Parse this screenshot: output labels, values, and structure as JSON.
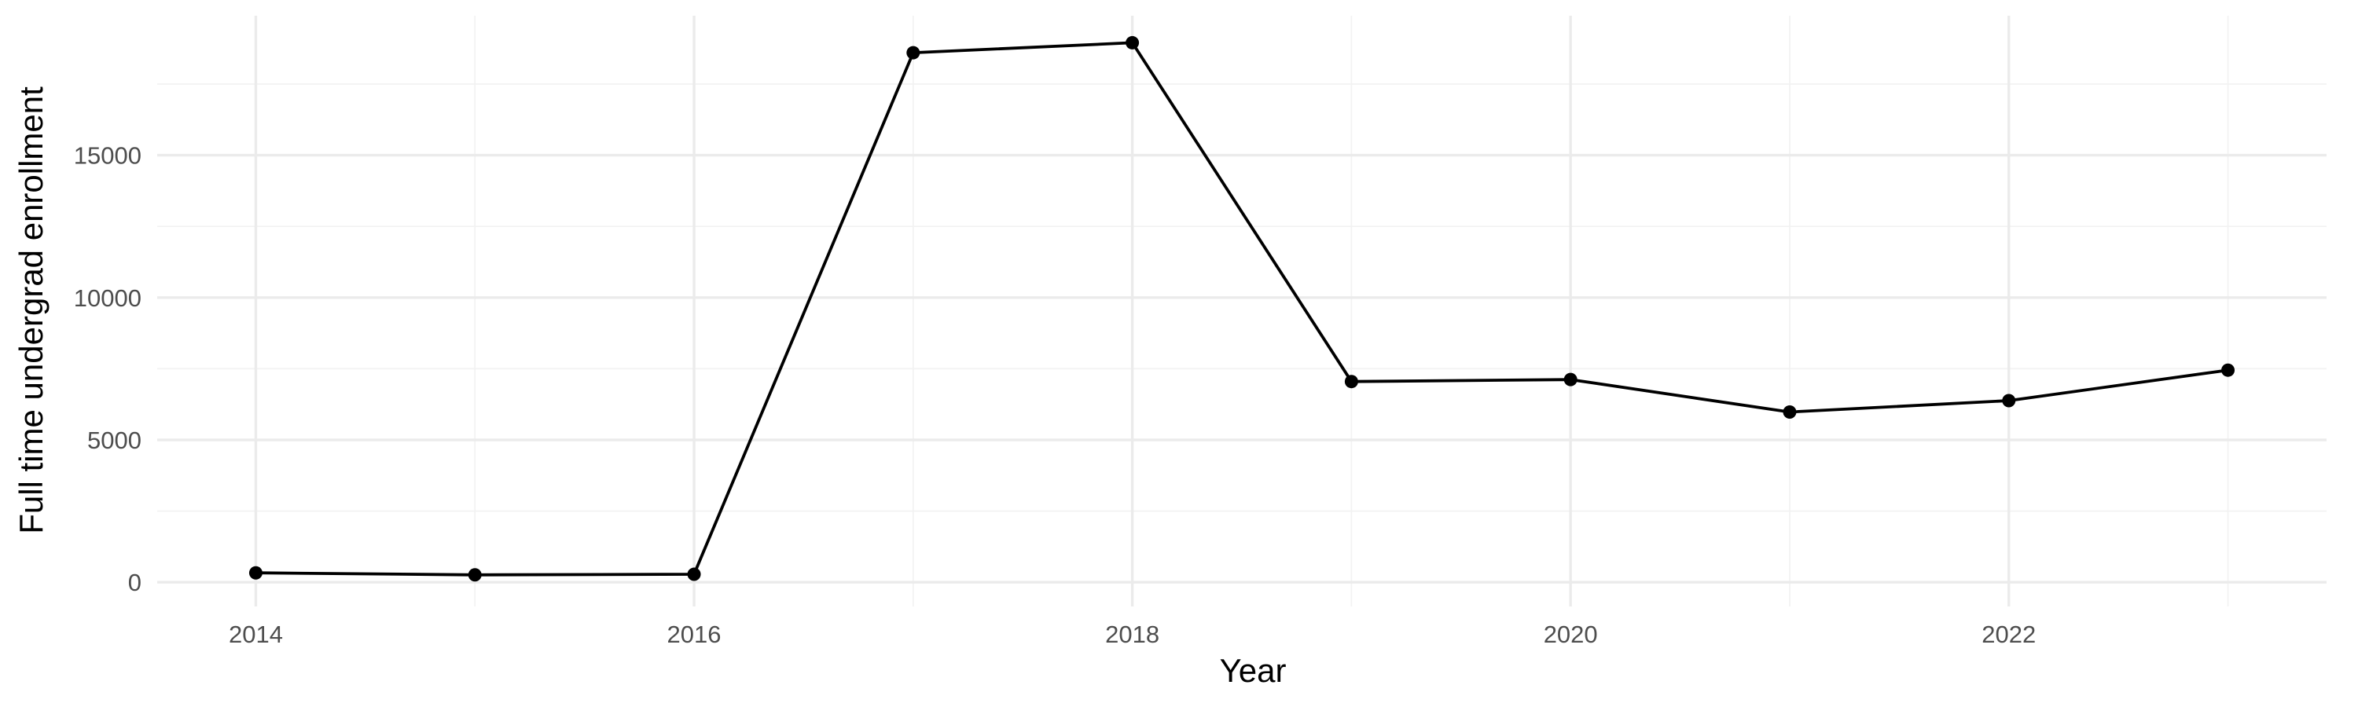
{
  "chart_data": {
    "type": "line",
    "title": "",
    "xlabel": "Year",
    "ylabel": "Full time undergrad enrollment",
    "x": [
      2014,
      2015,
      2016,
      2017,
      2018,
      2019,
      2020,
      2021,
      2022,
      2023
    ],
    "series": [
      {
        "values": [
          330,
          260,
          280,
          18600,
          18950,
          7050,
          7120,
          5980,
          6380,
          7450
        ]
      }
    ],
    "xlim": [
      2013.55,
      2023.45
    ],
    "ylim": [
      -850,
      19900
    ],
    "x_ticks": [
      2014,
      2016,
      2018,
      2020,
      2022
    ],
    "x_tick_labels": [
      "2014",
      "2016",
      "2018",
      "2020",
      "2022"
    ],
    "y_ticks": [
      0,
      5000,
      10000,
      15000
    ],
    "y_tick_labels": [
      "0",
      "5000",
      "10000",
      "15000"
    ],
    "x_minor_ticks": [
      2015,
      2017,
      2019,
      2021,
      2023
    ],
    "y_minor_ticks": [
      2500,
      7500,
      12500,
      17500
    ],
    "grid": true,
    "legend": "none",
    "colors": {
      "line": "#000000",
      "point": "#000000",
      "grid": "#ebebeb",
      "text": "#4d4d4d"
    }
  }
}
